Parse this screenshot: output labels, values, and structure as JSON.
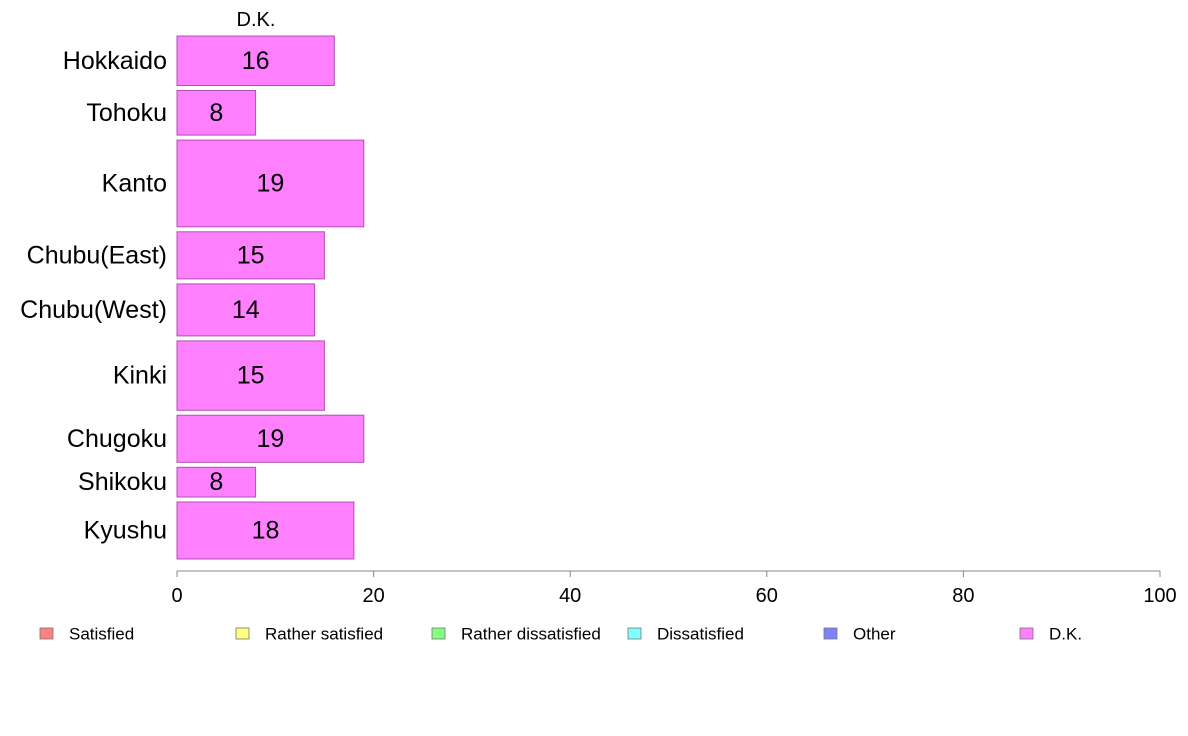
{
  "chart_data": {
    "type": "bar",
    "orientation": "horizontal",
    "panel_title": "D.K.",
    "categories": [
      "Hokkaido",
      "Tohoku",
      "Kanto",
      "Chubu(East)",
      "Chubu(West)",
      "Kinki",
      "Chugoku",
      "Shikoku",
      "Kyushu"
    ],
    "values": [
      16,
      8,
      19,
      15,
      14,
      15,
      19,
      8,
      18
    ],
    "value_labels": [
      "16",
      "8",
      "19",
      "15",
      "14",
      "15",
      "19",
      "8",
      "18"
    ],
    "bar_weights": [
      1.0,
      0.9,
      1.75,
      0.95,
      1.05,
      1.4,
      0.95,
      0.6,
      1.15
    ],
    "bar_color": "#ff80ff",
    "bar_stroke": "#b050b0",
    "xlim": [
      0,
      100
    ],
    "xticks": [
      0,
      20,
      40,
      60,
      80,
      100
    ],
    "xtick_labels": [
      "0",
      "20",
      "40",
      "60",
      "80",
      "100"
    ],
    "xlabel": "",
    "ylabel": "",
    "grid": false,
    "legend_position": "bottom",
    "legend": [
      {
        "name": "Satisfied",
        "color": "#ff8080"
      },
      {
        "name": "Rather satisfied",
        "color": "#ffff80"
      },
      {
        "name": "Rather dissatisfied",
        "color": "#80ff80"
      },
      {
        "name": "Dissatisfied",
        "color": "#80ffff"
      },
      {
        "name": "Other",
        "color": "#8080ff"
      },
      {
        "name": "D.K.",
        "color": "#ff80ff"
      }
    ]
  }
}
